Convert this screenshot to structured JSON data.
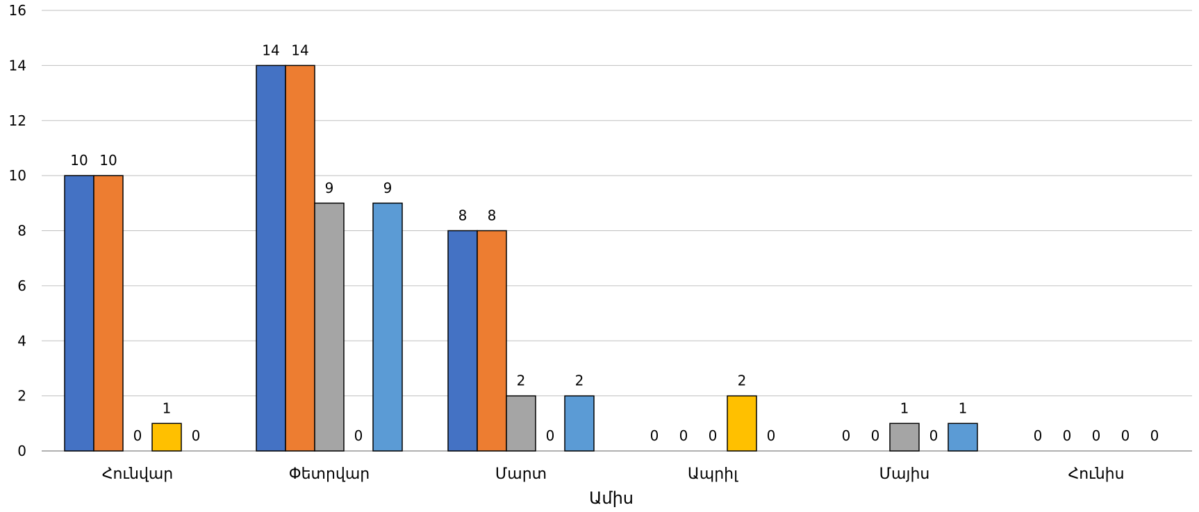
{
  "chart_data": {
    "type": "bar",
    "categories": [
      "Հունվար",
      "Փետրվար",
      "Մարտ",
      "Ապրիլ",
      "Մայիս",
      "Հունիս"
    ],
    "series": [
      {
        "values": [
          10,
          14,
          8,
          0,
          0,
          0
        ],
        "color": "#4472C4"
      },
      {
        "values": [
          10,
          14,
          8,
          0,
          0,
          0
        ],
        "color": "#ED7D31"
      },
      {
        "values": [
          0,
          9,
          2,
          0,
          1,
          0
        ],
        "color": "#A5A5A5"
      },
      {
        "values": [
          1,
          0,
          0,
          2,
          0,
          0
        ],
        "color": "#FFC000"
      },
      {
        "values": [
          0,
          9,
          2,
          0,
          1,
          0
        ],
        "color": "#5B9BD5"
      }
    ],
    "title": "",
    "xlabel": "Ամիս",
    "ylabel": "",
    "ylim": [
      0,
      16
    ],
    "yticks": [
      0,
      2,
      4,
      6,
      8,
      10,
      12,
      14,
      16
    ],
    "grid": true,
    "legend": "none",
    "data_labels": true
  }
}
